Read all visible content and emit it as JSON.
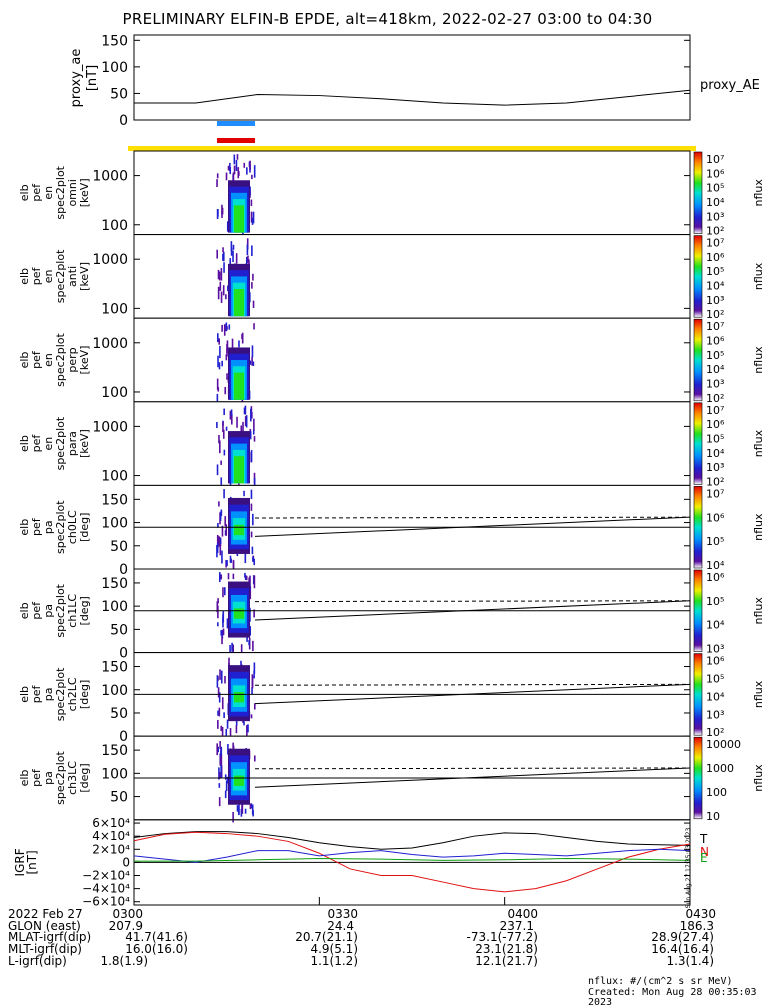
{
  "title": "PRELIMINARY ELFIN-B EPDE, alt=418km, 2022-02-27 03:00 to 04:30",
  "colors": {
    "bar_blue": "#1e8cff",
    "bar_red": "#e00000",
    "bar_yellow": "#ffe000",
    "bx": "#000000",
    "by": "#e01010",
    "bz": "#10a010",
    "n_line": "#2020d0"
  },
  "panels": [
    {
      "ylabel": [
        "elb",
        "pef",
        "en",
        "spec2plot",
        "omni",
        "[keV]"
      ],
      "yticks": [
        "100",
        "1000"
      ],
      "cbar_ticks": [
        "10⁷",
        "10⁶",
        "10⁵",
        "10⁴",
        "10³",
        "10²"
      ],
      "cbar_label": "nflux"
    },
    {
      "ylabel": [
        "elb",
        "pef",
        "en",
        "spec2plot",
        "anti",
        "[keV]"
      ],
      "yticks": [
        "100",
        "1000"
      ],
      "cbar_ticks": [
        "10⁷",
        "10⁶",
        "10⁵",
        "10⁴",
        "10³",
        "10²"
      ],
      "cbar_label": "nflux"
    },
    {
      "ylabel": [
        "elb",
        "pef",
        "en",
        "spec2plot",
        "perp",
        "[keV]"
      ],
      "yticks": [
        "100",
        "1000"
      ],
      "cbar_ticks": [
        "10⁷",
        "10⁶",
        "10⁵",
        "10⁴",
        "10³",
        "10²"
      ],
      "cbar_label": "nflux"
    },
    {
      "ylabel": [
        "elb",
        "pef",
        "en",
        "spec2plot",
        "para",
        "[keV]"
      ],
      "yticks": [
        "100",
        "1000"
      ],
      "cbar_ticks": [
        "10⁷",
        "10⁶",
        "10⁵",
        "10⁴",
        "10³",
        "10²"
      ],
      "cbar_label": "nflux"
    },
    {
      "ylabel": [
        "elb",
        "pef",
        "pa",
        "spec2plot",
        "ch0LC",
        "[deg]"
      ],
      "yticks": [
        "0",
        "50",
        "100",
        "150"
      ],
      "cbar_ticks": [
        "10⁷",
        "10⁶",
        "10⁵",
        "10⁴"
      ],
      "cbar_label": "nflux"
    },
    {
      "ylabel": [
        "elb",
        "pef",
        "pa",
        "spec2plot",
        "ch1LC",
        "[deg]"
      ],
      "yticks": [
        "0",
        "50",
        "100",
        "150"
      ],
      "cbar_ticks": [
        "10⁶",
        "10⁵",
        "10⁴",
        "10³"
      ],
      "cbar_label": "nflux"
    },
    {
      "ylabel": [
        "elb",
        "pef",
        "pa",
        "spec2plot",
        "ch2LC",
        "[deg]"
      ],
      "yticks": [
        "0",
        "50",
        "100",
        "150"
      ],
      "cbar_ticks": [
        "10⁶",
        "10⁵",
        "10⁴",
        "10³",
        "10²"
      ],
      "cbar_label": "nflux"
    },
    {
      "ylabel": [
        "elb",
        "pef",
        "pa",
        "spec2plot",
        "ch3LC",
        "[deg]"
      ],
      "yticks": [
        "50",
        "100",
        "150"
      ],
      "cbar_ticks": [
        "10000",
        "1000",
        "100",
        "10"
      ],
      "cbar_label": "nflux"
    }
  ],
  "chart_data": [
    {
      "type": "line",
      "title": "",
      "ylabel": [
        "proxy_ae",
        "[nT]"
      ],
      "yticks": [
        "0",
        "50",
        "100",
        "150"
      ],
      "ylim": [
        0,
        160
      ],
      "legend": "proxy_AE",
      "series": [
        {
          "name": "proxy_AE",
          "x_min": [
            0,
            10,
            20,
            30,
            40,
            50,
            60,
            70,
            80,
            90
          ],
          "y": [
            32,
            32,
            48,
            46,
            40,
            32,
            28,
            32,
            44,
            56
          ]
        }
      ]
    },
    {
      "type": "line",
      "title": "",
      "ylabel": [
        "IGRF",
        "[nT]"
      ],
      "yticks": [
        "6×10⁴",
        "4×10⁴",
        "2×10⁴",
        "0",
        "−2×10⁴",
        "−4×10⁴",
        "−6×10⁴"
      ],
      "ylim": [
        -65000,
        65000
      ],
      "legend": [
        "T",
        "N",
        "E"
      ],
      "series": [
        {
          "name": "T",
          "x_min": [
            0,
            5,
            10,
            15,
            20,
            25,
            30,
            35,
            40,
            45,
            50,
            55,
            60,
            65,
            70,
            75,
            80,
            85,
            90
          ],
          "y": [
            38000,
            44000,
            47000,
            47000,
            44000,
            38000,
            30000,
            24000,
            20000,
            22000,
            30000,
            40000,
            45000,
            44000,
            38000,
            32000,
            28000,
            27000,
            26000
          ]
        },
        {
          "name": "N",
          "x_min": [
            0,
            5,
            10,
            15,
            20,
            25,
            30,
            35,
            40,
            45,
            50,
            55,
            60,
            65,
            70,
            75,
            80,
            85,
            90
          ],
          "y": [
            33000,
            43000,
            46000,
            44000,
            40000,
            32000,
            14000,
            -10000,
            -20000,
            -20000,
            -30000,
            -40000,
            -45000,
            -40000,
            -28000,
            -10000,
            8000,
            20000,
            28000
          ]
        },
        {
          "name": "E",
          "x_min": [
            0,
            5,
            10,
            15,
            20,
            25,
            30,
            35,
            40,
            45,
            50,
            55,
            60,
            65,
            70,
            75,
            80,
            85,
            90
          ],
          "y": [
            10000,
            5000,
            0,
            8000,
            18000,
            18000,
            10000,
            15000,
            18000,
            12000,
            8000,
            10000,
            14000,
            12000,
            10000,
            14000,
            18000,
            20000,
            18000
          ]
        },
        {
          "name": "E",
          "x_min": [
            0,
            10,
            20,
            30,
            40,
            50,
            60,
            70,
            80,
            90
          ],
          "y": [
            2000,
            2000,
            4000,
            6000,
            5000,
            3000,
            4000,
            6000,
            5000,
            3000
          ]
        }
      ]
    }
  ],
  "xaxis": {
    "rows": [
      {
        "label": "2022 Feb 27",
        "values": [
          "0300",
          "0330",
          "0400",
          "0430"
        ]
      },
      {
        "label": "GLON (east)",
        "values": [
          "207.9",
          "24.4",
          "237.1",
          "186.3"
        ]
      },
      {
        "label": "MLAT-igrf(dip)",
        "values": [
          "41.7(41.6)",
          "20.7(21.1)",
          "-73.1(-77.2)",
          "28.9(27.4)"
        ]
      },
      {
        "label": "MLT-igrf(dip)",
        "values": [
          "16.0(16.0)",
          "4.9(5.1)",
          "23.1(21.8)",
          "16.4(16.4)"
        ]
      },
      {
        "label": "L-igrf(dip)",
        "values": [
          "1.8(1.9)",
          "1.1(1.2)",
          "12.1(21.7)",
          "1.3(1.4)"
        ]
      }
    ]
  },
  "footer": {
    "units": "nflux: #/(cm^2 s sr MeV)",
    "created": "Created: Mon Aug 28 00:35:03 2023",
    "side_stamp": "Sun Aug 27 17:35:03 2023"
  }
}
